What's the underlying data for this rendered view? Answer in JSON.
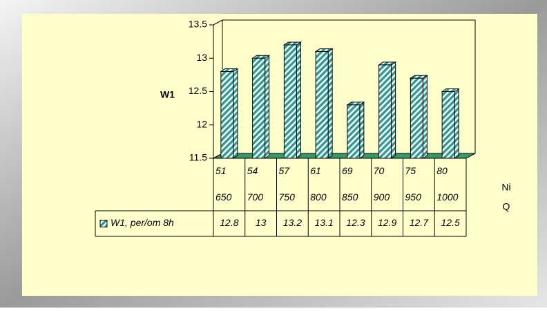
{
  "chart_data": {
    "type": "bar3d",
    "y_label": "W1",
    "x_labels": [
      "Ni",
      "Q"
    ],
    "category_levels": [
      [
        "51",
        "54",
        "57",
        "61",
        "69",
        "70",
        "75",
        "80"
      ],
      [
        "650",
        "700",
        "750",
        "800",
        "850",
        "900",
        "950",
        "1000"
      ]
    ],
    "series": [
      {
        "name": "W1, per/om 8h",
        "color": "#339999",
        "values": [
          12.8,
          13,
          13.2,
          13.1,
          12.3,
          12.9,
          12.7,
          12.5
        ]
      }
    ],
    "ylim": [
      11.5,
      13.5
    ],
    "yticks": [
      11.5,
      12,
      12.5,
      13,
      13.5
    ],
    "floor_color": "#339966",
    "data_table": true
  }
}
